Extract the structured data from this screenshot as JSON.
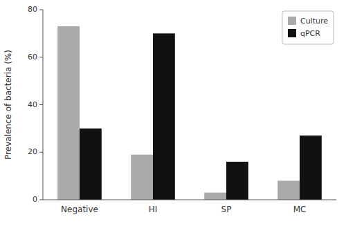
{
  "chart_data": {
    "type": "bar",
    "categories": [
      "Negative",
      "HI",
      "SP",
      "MC"
    ],
    "series": [
      {
        "name": "Culture",
        "color": "#aaaaaa",
        "values": [
          73,
          19,
          3,
          8
        ]
      },
      {
        "name": "qPCR",
        "color": "#111111",
        "values": [
          30,
          70,
          16,
          27
        ]
      }
    ],
    "ylabel": "Prevalence of bacteria (%)",
    "ylim": [
      0,
      80
    ],
    "yticks": [
      0,
      20,
      40,
      60,
      80
    ],
    "grid": false,
    "legend": "upper right"
  }
}
